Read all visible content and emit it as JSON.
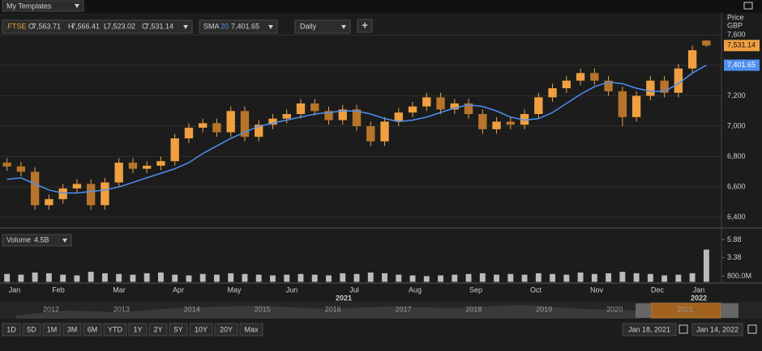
{
  "top_bar": {
    "templates": "My Templates"
  },
  "toolbar": {
    "symbol": ".FTSE",
    "quote": [
      "O",
      "7,563.71",
      "H",
      "7,566.41",
      "L",
      "7,523.02",
      "C",
      "7,531.14"
    ],
    "study": "SMA",
    "study_period": "20",
    "study_value": "7,401.65",
    "interval": "Daily",
    "add": "+"
  },
  "chart_data": [
    {
      "type": "candlestick",
      "ylabel": "Price",
      "currency": "GBP",
      "open": [
        6760,
        6735,
        6700,
        6480,
        6520,
        6590,
        6620,
        6480,
        6630,
        6760,
        6720,
        6740,
        6770,
        6920,
        6990,
        7020,
        6960,
        7100,
        6930,
        7010,
        7050,
        7080,
        7150,
        7100,
        7040,
        7110,
        7000,
        6900,
        7030,
        7090,
        7130,
        7190,
        7110,
        7150,
        7080,
        6980,
        7030,
        7010,
        7080,
        7190,
        7250,
        7300,
        7350,
        7300,
        7230,
        7060,
        7200,
        7300,
        7220,
        7380,
        7563.71
      ],
      "high": [
        6790,
        6765,
        6730,
        6550,
        6620,
        6650,
        6650,
        6660,
        6790,
        6790,
        6770,
        6800,
        6950,
        7020,
        7050,
        7050,
        7130,
        7130,
        7040,
        7080,
        7110,
        7180,
        7180,
        7130,
        7140,
        7140,
        7030,
        7060,
        7120,
        7160,
        7220,
        7220,
        7180,
        7180,
        7110,
        7060,
        7060,
        7110,
        7220,
        7280,
        7330,
        7380,
        7380,
        7330,
        7260,
        7230,
        7330,
        7330,
        7410,
        7530,
        7566.41
      ],
      "low": [
        6705,
        6670,
        6450,
        6450,
        6490,
        6560,
        6450,
        6450,
        6600,
        6690,
        6690,
        6710,
        6740,
        6890,
        6960,
        6930,
        6930,
        6900,
        6900,
        6980,
        7020,
        7050,
        7070,
        7010,
        7010,
        6970,
        6870,
        6870,
        7000,
        7060,
        7100,
        7080,
        7080,
        7050,
        6950,
        6950,
        6980,
        6980,
        7050,
        7160,
        7220,
        7270,
        7270,
        7200,
        7000,
        7030,
        7170,
        7190,
        7190,
        7350,
        7523.02
      ],
      "close": [
        6735,
        6700,
        6480,
        6520,
        6590,
        6620,
        6480,
        6630,
        6760,
        6720,
        6740,
        6770,
        6920,
        6990,
        7020,
        6960,
        7100,
        6930,
        7010,
        7050,
        7080,
        7150,
        7100,
        7040,
        7110,
        7000,
        6900,
        7030,
        7090,
        7130,
        7190,
        7110,
        7150,
        7080,
        6980,
        7030,
        7010,
        7080,
        7190,
        7250,
        7300,
        7350,
        7300,
        7230,
        7060,
        7200,
        7300,
        7220,
        7380,
        7500,
        7531.14
      ],
      "color": "#f0a040",
      "sma": {
        "color": "#4f8ff0",
        "values": [
          6650,
          6660,
          6620,
          6580,
          6560,
          6560,
          6570,
          6580,
          6600,
          6630,
          6660,
          6690,
          6720,
          6760,
          6820,
          6870,
          6920,
          6960,
          7000,
          7020,
          7040,
          7060,
          7080,
          7090,
          7100,
          7100,
          7080,
          7050,
          7030,
          7040,
          7060,
          7090,
          7120,
          7140,
          7130,
          7100,
          7060,
          7040,
          7050,
          7090,
          7150,
          7210,
          7260,
          7290,
          7280,
          7250,
          7230,
          7230,
          7280,
          7350,
          7401.65
        ]
      },
      "last_price_label": "7,531.14",
      "sma_price_label": "7,401.65",
      "ylim": [
        6340,
        7735
      ],
      "yticks": [
        {
          "value": 6400,
          "label": "6,400"
        },
        {
          "value": 6600,
          "label": "6,600"
        },
        {
          "value": 6800,
          "label": "6,800"
        },
        {
          "value": 7000,
          "label": "7,000"
        },
        {
          "value": 7200,
          "label": "7,200"
        },
        {
          "value": 7400,
          "label": "7,400"
        },
        {
          "value": 7600,
          "label": "7,600"
        }
      ],
      "grid": true
    },
    {
      "type": "bar",
      "title": "Volume",
      "last_label": "4.5B",
      "color": "#bbbbbb",
      "values": [
        1.1,
        1.0,
        1.3,
        1.2,
        1.0,
        0.9,
        1.4,
        1.2,
        1.1,
        1.0,
        1.2,
        1.3,
        1.0,
        0.9,
        1.1,
        1.0,
        1.2,
        1.1,
        1.0,
        0.9,
        1.0,
        1.1,
        1.0,
        0.9,
        1.2,
        1.1,
        1.3,
        1.2,
        1.0,
        0.9,
        0.8,
        0.9,
        1.0,
        1.1,
        1.2,
        1.0,
        1.1,
        1.0,
        1.2,
        1.1,
        1.0,
        1.3,
        1.1,
        1.2,
        1.4,
        1.2,
        1.1,
        0.9,
        1.0,
        1.2,
        4.5
      ],
      "ylim": [
        0,
        6.6
      ],
      "yticks": [
        {
          "value": 0.8,
          "label": "800.0M"
        },
        3.38,
        5.88
      ]
    }
  ],
  "x_axis": {
    "months": [
      "Jan",
      "Feb",
      "Mar",
      "Apr",
      "May",
      "Jun",
      "Jul",
      "Aug",
      "Sep",
      "Oct",
      "Nov",
      "Dec",
      "Jan"
    ],
    "years": [
      "2021",
      "2022"
    ]
  },
  "navigator": {
    "years": [
      "2012",
      "2013",
      "2014",
      "2015",
      "2016",
      "2017",
      "2018",
      "2019",
      "2020",
      "2021"
    ],
    "start": "Jan 18, 2021",
    "end": "Jan 14, 2022"
  },
  "range_buttons": [
    "1D",
    "5D",
    "1M",
    "3M",
    "6M",
    "YTD",
    "1Y",
    "2Y",
    "5Y",
    "10Y",
    "20Y",
    "Max"
  ]
}
